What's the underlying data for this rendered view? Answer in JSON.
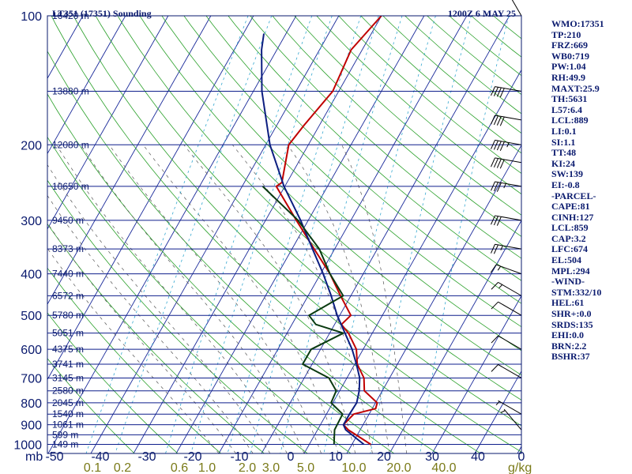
{
  "chart_data": {
    "type": "line",
    "title": "LT351 (17351) Sounding",
    "time_label": "1200Z  6 MAY 25",
    "pressure_unit": "mb",
    "mixing_ratio_unit": "g/kg",
    "pressure_ticks": [
      "100",
      "200",
      "300",
      "400",
      "500",
      "600",
      "700",
      "800",
      "900",
      "1000"
    ],
    "temperature_ticks": [
      "-50",
      "-40",
      "-30",
      "-20",
      "-10",
      "0",
      "10",
      "20",
      "30",
      "40",
      "0"
    ],
    "mixing_ratio_ticks": [
      "0.1",
      "0.2",
      "0.6",
      "1.0",
      "2.0",
      "3.0",
      "5.0",
      "10.0",
      "20.0",
      "40.0"
    ],
    "height_labels": [
      {
        "p": 100,
        "text": "16420 m"
      },
      {
        "p": 150,
        "text": "13880 m"
      },
      {
        "p": 200,
        "text": "12080 m"
      },
      {
        "p": 250,
        "text": "10650 m"
      },
      {
        "p": 300,
        "text": "9450 m"
      },
      {
        "p": 350,
        "text": "8373 m"
      },
      {
        "p": 400,
        "text": "7440 m"
      },
      {
        "p": 450,
        "text": "6572 m"
      },
      {
        "p": 500,
        "text": "5780 m"
      },
      {
        "p": 550,
        "text": "5051 m"
      },
      {
        "p": 600,
        "text": "4375 m"
      },
      {
        "p": 650,
        "text": "3741 m"
      },
      {
        "p": 700,
        "text": "3145 m"
      },
      {
        "p": 750,
        "text": "2580 m"
      },
      {
        "p": 800,
        "text": "2045 m"
      },
      {
        "p": 850,
        "text": "1540 m"
      },
      {
        "p": 900,
        "text": "1061 m"
      },
      {
        "p": 950,
        "text": "599 m"
      },
      {
        "p": 1000,
        "text": "149 m"
      }
    ],
    "series": [
      {
        "color": "#c00000",
        "points": [
          [
            1000,
            24.4
          ],
          [
            925,
            17.2
          ],
          [
            900,
            15.4
          ],
          [
            850,
            16.4
          ],
          [
            825,
            20.8
          ],
          [
            800,
            20.4
          ],
          [
            750,
            15.8
          ],
          [
            700,
            14.0
          ],
          [
            650,
            10.6
          ],
          [
            600,
            8.4
          ],
          [
            550,
            4.4
          ],
          [
            525,
            1.6
          ],
          [
            500,
            2.6
          ],
          [
            450,
            -2.4
          ],
          [
            400,
            -7.8
          ],
          [
            350,
            -14.8
          ],
          [
            300,
            -22.8
          ],
          [
            250,
            -32.0
          ],
          [
            245,
            -31.2
          ],
          [
            200,
            -34.6
          ],
          [
            180,
            -33.6
          ],
          [
            150,
            -31.4
          ],
          [
            120,
            -32.6
          ],
          [
            100,
            -30.0
          ]
        ]
      },
      {
        "color": "#0c1e80",
        "points": [
          [
            1000,
            22.8
          ],
          [
            925,
            16.6
          ],
          [
            900,
            15.4
          ],
          [
            850,
            15.4
          ],
          [
            800,
            15.6
          ],
          [
            750,
            14.6
          ],
          [
            700,
            13.0
          ],
          [
            650,
            10.4
          ],
          [
            600,
            7.4
          ],
          [
            550,
            3.6
          ],
          [
            500,
            -0.6
          ],
          [
            450,
            -4.6
          ],
          [
            400,
            -9.4
          ],
          [
            350,
            -15.2
          ],
          [
            300,
            -21.8
          ],
          [
            250,
            -30.2
          ],
          [
            200,
            -39.0
          ],
          [
            150,
            -48.0
          ],
          [
            120,
            -53.6
          ],
          [
            110,
            -55.2
          ]
        ]
      },
      {
        "color": "#0a3a10",
        "points": [
          [
            1000,
            15.8
          ],
          [
            925,
            14.0
          ],
          [
            850,
            13.8
          ],
          [
            800,
            9.6
          ],
          [
            750,
            9.2
          ],
          [
            700,
            5.8
          ],
          [
            650,
            -2.2
          ],
          [
            600,
            -2.2
          ],
          [
            550,
            3.2
          ],
          [
            525,
            -4.4
          ],
          [
            500,
            -7.2
          ],
          [
            450,
            -1.8
          ],
          [
            400,
            -7.8
          ],
          [
            350,
            -13.6
          ],
          [
            300,
            -22.4
          ],
          [
            250,
            -35.2
          ]
        ]
      }
    ],
    "wind_barbs": [
      {
        "p": 100,
        "dir": 330,
        "kt": 15
      },
      {
        "p": 150,
        "dir": 280,
        "kt": 40
      },
      {
        "p": 175,
        "dir": 280,
        "kt": 40
      },
      {
        "p": 200,
        "dir": 280,
        "kt": 45
      },
      {
        "p": 220,
        "dir": 280,
        "kt": 40
      },
      {
        "p": 250,
        "dir": 280,
        "kt": 35
      },
      {
        "p": 300,
        "dir": 280,
        "kt": 30
      },
      {
        "p": 350,
        "dir": 280,
        "kt": 25
      },
      {
        "p": 400,
        "dir": 290,
        "kt": 15
      },
      {
        "p": 450,
        "dir": 300,
        "kt": 15
      },
      {
        "p": 500,
        "dir": 300,
        "kt": 10
      },
      {
        "p": 600,
        "dir": 300,
        "kt": 10
      },
      {
        "p": 700,
        "dir": 300,
        "kt": 10
      },
      {
        "p": 850,
        "dir": 300,
        "kt": 5
      },
      {
        "p": 925,
        "dir": 320,
        "kt": 5
      }
    ],
    "temperature_range": [
      -50,
      50
    ],
    "pressure_range": [
      100,
      1050
    ]
  },
  "parameters": [
    "WMO:17351",
    "TP:210",
    "FRZ:669",
    "WB0:719",
    "PW:1.04",
    "RH:49.9",
    "MAXT:25.9",
    "TH:5631",
    "L57:6.4",
    "LCL:889",
    "LI:0.1",
    "SI:1.1",
    "TT:48",
    "KI:24",
    "SW:139",
    "EI:-0.8",
    "-PARCEL-",
    "CAPE:81",
    "CINH:127",
    "LCL:859",
    "CAP:3.2",
    "LFC:674",
    "EL:504",
    "MPL:294",
    "-WIND-",
    "STM:332/10",
    "HEL:61",
    "SHR+:0.0",
    "SRDS:135",
    "EHI:0.0",
    "BRN:2.2",
    "BSHR:37"
  ]
}
